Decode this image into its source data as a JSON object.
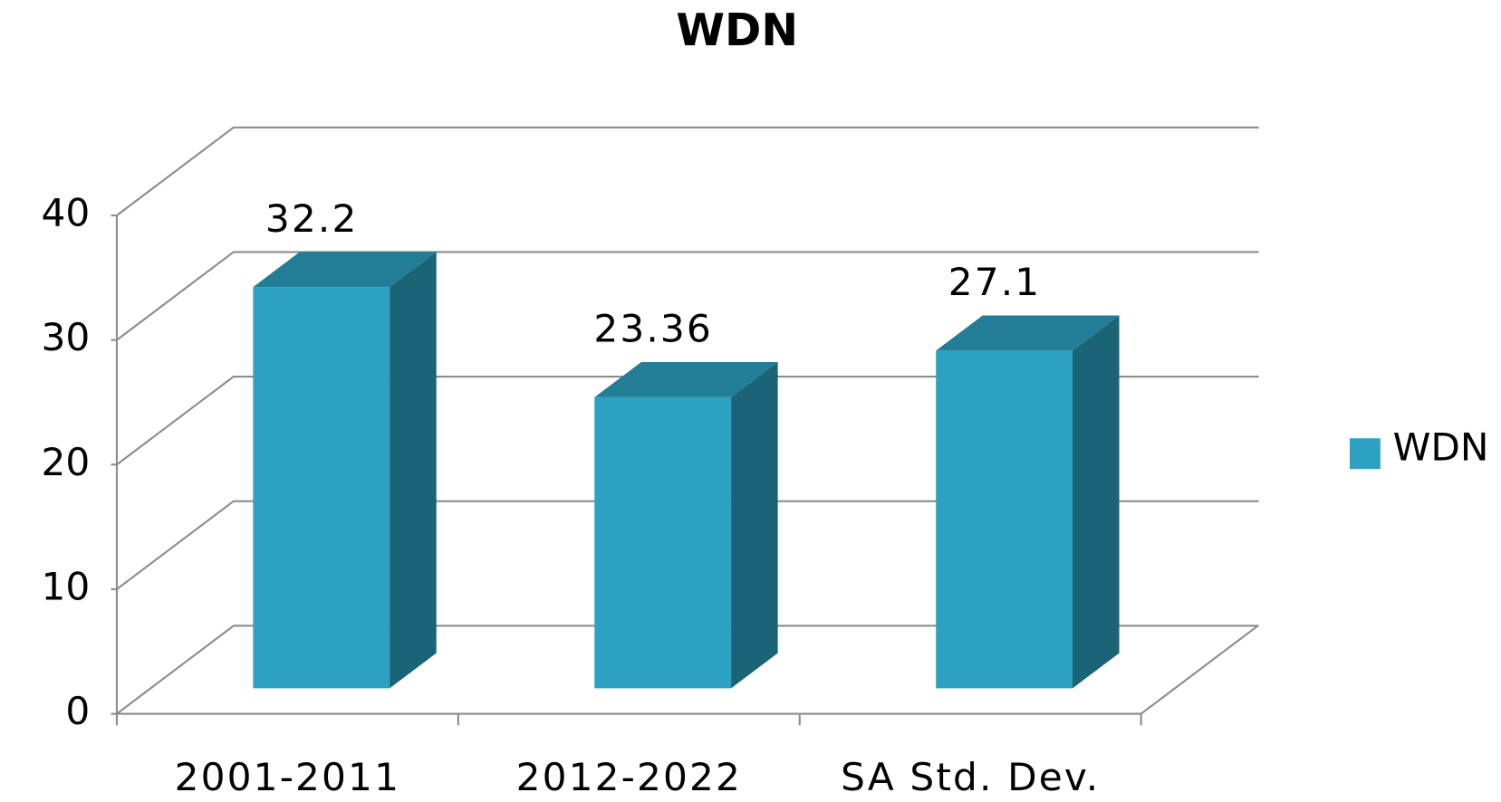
{
  "chart_data": {
    "type": "bar",
    "title": "WDN",
    "categories": [
      "2001-2011",
      "2012-2022",
      "SA Std. Dev."
    ],
    "series": [
      {
        "name": "WDN",
        "color": "#2ca1c1",
        "values": [
          32.2,
          23.36,
          27.1
        ]
      }
    ],
    "ylim": [
      0,
      40
    ],
    "yticks": [
      0,
      10,
      20,
      30,
      40
    ],
    "grid": true,
    "legend": "right"
  }
}
